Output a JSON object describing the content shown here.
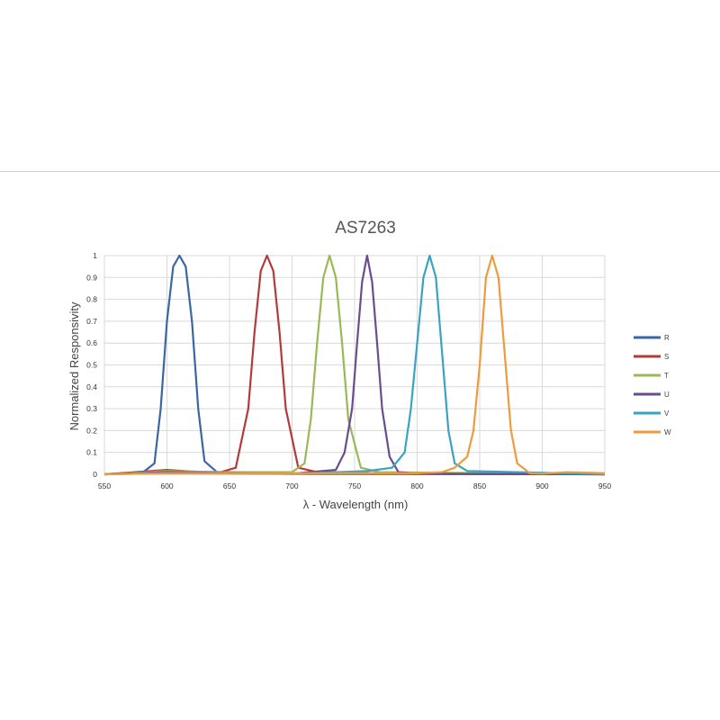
{
  "chart_data": {
    "type": "line",
    "title": "AS7263",
    "xlabel": "λ - Wavelength (nm)",
    "ylabel": "Normalized Responsivity",
    "xlim": [
      550,
      950
    ],
    "ylim": [
      0,
      1
    ],
    "xticks": [
      550,
      600,
      650,
      700,
      750,
      800,
      850,
      900,
      950
    ],
    "yticks": [
      0,
      0.1,
      0.2,
      0.3,
      0.4,
      0.5,
      0.6,
      0.7,
      0.8,
      0.9,
      1
    ],
    "grid": "vertical and horizontal",
    "legend_position": "right",
    "series": [
      {
        "name": "R",
        "color": "#3a66a4",
        "x": [
          550,
          580,
          590,
          595,
          600,
          605,
          610,
          615,
          620,
          625,
          630,
          640,
          660,
          700,
          950
        ],
        "y": [
          0,
          0.005,
          0.05,
          0.3,
          0.7,
          0.95,
          1.0,
          0.95,
          0.7,
          0.3,
          0.06,
          0.01,
          0.005,
          0.002,
          0
        ]
      },
      {
        "name": "S",
        "color": "#b33a3a",
        "x": [
          550,
          600,
          640,
          655,
          665,
          670,
          675,
          680,
          685,
          690,
          695,
          705,
          720,
          800,
          950
        ],
        "y": [
          0,
          0.02,
          0.005,
          0.03,
          0.3,
          0.65,
          0.93,
          1.0,
          0.93,
          0.65,
          0.3,
          0.03,
          0.01,
          0.002,
          0
        ]
      },
      {
        "name": "T",
        "color": "#98b954",
        "x": [
          550,
          600,
          650,
          700,
          710,
          715,
          720,
          725,
          730,
          735,
          740,
          745,
          755,
          770,
          950
        ],
        "y": [
          0,
          0.015,
          0.01,
          0.01,
          0.05,
          0.25,
          0.6,
          0.9,
          1.0,
          0.9,
          0.6,
          0.25,
          0.03,
          0.01,
          0
        ]
      },
      {
        "name": "U",
        "color": "#6a4d8c",
        "x": [
          550,
          600,
          700,
          735,
          742,
          748,
          752,
          756,
          760,
          764,
          768,
          772,
          778,
          785,
          800,
          950
        ],
        "y": [
          0,
          0.01,
          0.003,
          0.02,
          0.1,
          0.3,
          0.6,
          0.88,
          1.0,
          0.88,
          0.6,
          0.3,
          0.08,
          0.01,
          0.003,
          0
        ]
      },
      {
        "name": "V",
        "color": "#3aa3c1",
        "x": [
          550,
          600,
          700,
          760,
          780,
          790,
          795,
          800,
          805,
          810,
          815,
          820,
          825,
          830,
          840,
          880,
          950
        ],
        "y": [
          0,
          0.005,
          0.002,
          0.015,
          0.03,
          0.1,
          0.3,
          0.6,
          0.9,
          1.0,
          0.9,
          0.55,
          0.2,
          0.05,
          0.015,
          0.01,
          0
        ]
      },
      {
        "name": "W",
        "color": "#ef9a3e",
        "x": [
          550,
          600,
          800,
          820,
          830,
          840,
          845,
          850,
          855,
          860,
          865,
          870,
          875,
          880,
          890,
          900,
          920,
          950
        ],
        "y": [
          0,
          0.005,
          0.005,
          0.01,
          0.03,
          0.08,
          0.2,
          0.5,
          0.9,
          1.0,
          0.9,
          0.55,
          0.2,
          0.05,
          0.005,
          0.003,
          0.01,
          0.005
        ]
      }
    ]
  }
}
